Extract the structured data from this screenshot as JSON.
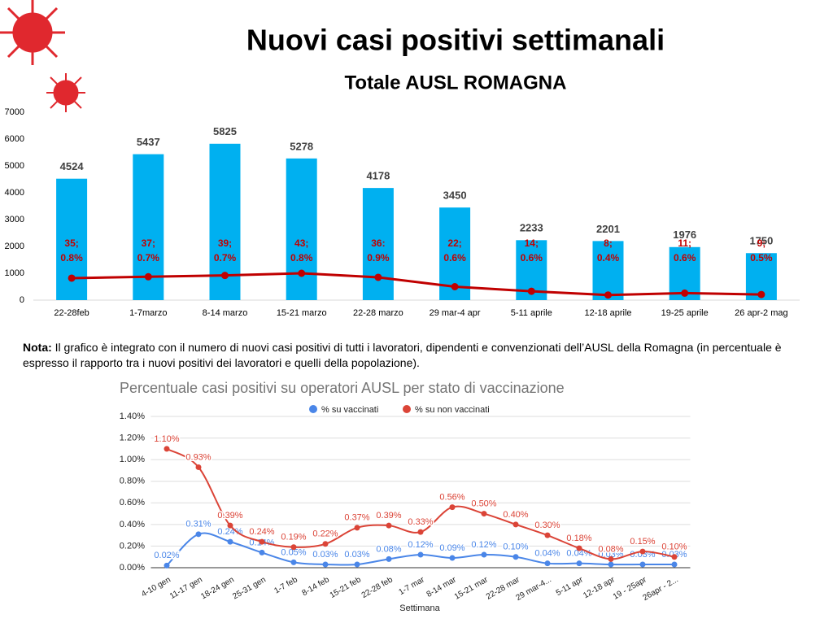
{
  "chart_data": [
    {
      "type": "bar-line",
      "title": "Nuovi casi positivi settimanali",
      "subtitle": "Totale AUSL ROMAGNA",
      "categories": [
        "22-28feb",
        "1-7marzo",
        "8-14 marzo",
        "15-21 marzo",
        "22-28 marzo",
        "29 mar-4 apr",
        "5-11 aprile",
        "12-18 aprile",
        "19-25 aprile",
        "26 apr-2 mag"
      ],
      "bars": {
        "color": "#00b0f0",
        "values": [
          4524,
          5437,
          5825,
          5278,
          4178,
          3450,
          2233,
          2201,
          1976,
          1750
        ]
      },
      "line": {
        "color": "#c00000",
        "values": [
          820,
          870,
          920,
          1000,
          850,
          500,
          330,
          190,
          260,
          210
        ]
      },
      "bar_annotations": [
        [
          "35;",
          "0.8%"
        ],
        [
          "37;",
          "0.7%"
        ],
        [
          "39;",
          "0.7%"
        ],
        [
          "43;",
          "0.8%"
        ],
        [
          "36:",
          "0.9%"
        ],
        [
          "22;",
          "0.6%"
        ],
        [
          "14;",
          "0.6%"
        ],
        [
          "8;",
          "0.4%"
        ],
        [
          "11;",
          "0.6%"
        ],
        [
          "9;",
          "0.5%"
        ]
      ],
      "ylim": [
        0,
        7000
      ],
      "yticks": [
        0,
        1000,
        2000,
        3000,
        4000,
        5000,
        6000,
        7000
      ],
      "grid": false
    },
    {
      "type": "line",
      "title": "Percentuale casi positivi su operatori AUSL per stato di vaccinazione",
      "x_label": "Settimana",
      "categories": [
        "4-10 gen",
        "11-17 gen",
        "18-24 gen",
        "25-31 gen",
        "1-7 feb",
        "8-14 feb",
        "15-21 feb",
        "22-28 feb",
        "1-7 mar",
        "8-14 mar",
        "15-21 mar",
        "22-28 mar",
        "29 mar-4...",
        "5-11 apr",
        "12-18 apr",
        "19 - 25apr",
        "26apr - 2..."
      ],
      "series": [
        {
          "name": "% su vaccinati",
          "color": "#4a86e8",
          "values": [
            0.02,
            0.31,
            0.24,
            0.14,
            0.05,
            0.03,
            0.03,
            0.08,
            0.12,
            0.09,
            0.12,
            0.1,
            0.04,
            0.04,
            0.03,
            0.03,
            0.03
          ],
          "value_labels": [
            "0.02%",
            "0.31%",
            "0.24%",
            "0.14%",
            "0.05%",
            "0.03%",
            "0.03%",
            "0.08%",
            "0.12%",
            "0.09%",
            "0.12%",
            "0.10%",
            "0.04%",
            "0.04%",
            "0.03%",
            "0.03%",
            "0.03%"
          ]
        },
        {
          "name": "% su non vaccinati",
          "color": "#db4437",
          "values": [
            1.1,
            0.93,
            0.39,
            0.24,
            0.19,
            0.22,
            0.37,
            0.39,
            0.33,
            0.56,
            0.5,
            0.4,
            0.3,
            0.18,
            0.08,
            0.15,
            0.1
          ],
          "value_labels": [
            "1.10%",
            "0.93%",
            "0.39%",
            "0.24%",
            "0.19%",
            "0.22%",
            "0.37%",
            "0.39%",
            "0.33%",
            "0.56%",
            "0.50%",
            "0.40%",
            "0.30%",
            "0.18%",
            "0.08%",
            "0.15%",
            "0.10%"
          ]
        }
      ],
      "ylim": [
        0,
        1.4
      ],
      "yticks": [
        {
          "value": 0,
          "label": "0.00%"
        },
        {
          "value": 0.2,
          "label": "0.20%"
        },
        {
          "value": 0.4,
          "label": "0.40%"
        },
        {
          "value": 0.6,
          "label": "0.60%"
        },
        {
          "value": 0.8,
          "label": "0.80%"
        },
        {
          "value": 1.0,
          "label": "1.00%"
        },
        {
          "value": 1.2,
          "label": "1.20%"
        },
        {
          "value": 1.4,
          "label": "1.40%"
        }
      ],
      "grid": true,
      "legend": "top"
    }
  ],
  "note": {
    "label": "Nota:",
    "text": "Il grafico è integrato con il numero di nuovi casi positivi di tutti i lavoratori, dipendenti e convenzionati dell’AUSL della Romagna (in percentuale è espresso il rapporto tra i nuovi positivi dei lavoratori e quelli della popolazione)."
  }
}
